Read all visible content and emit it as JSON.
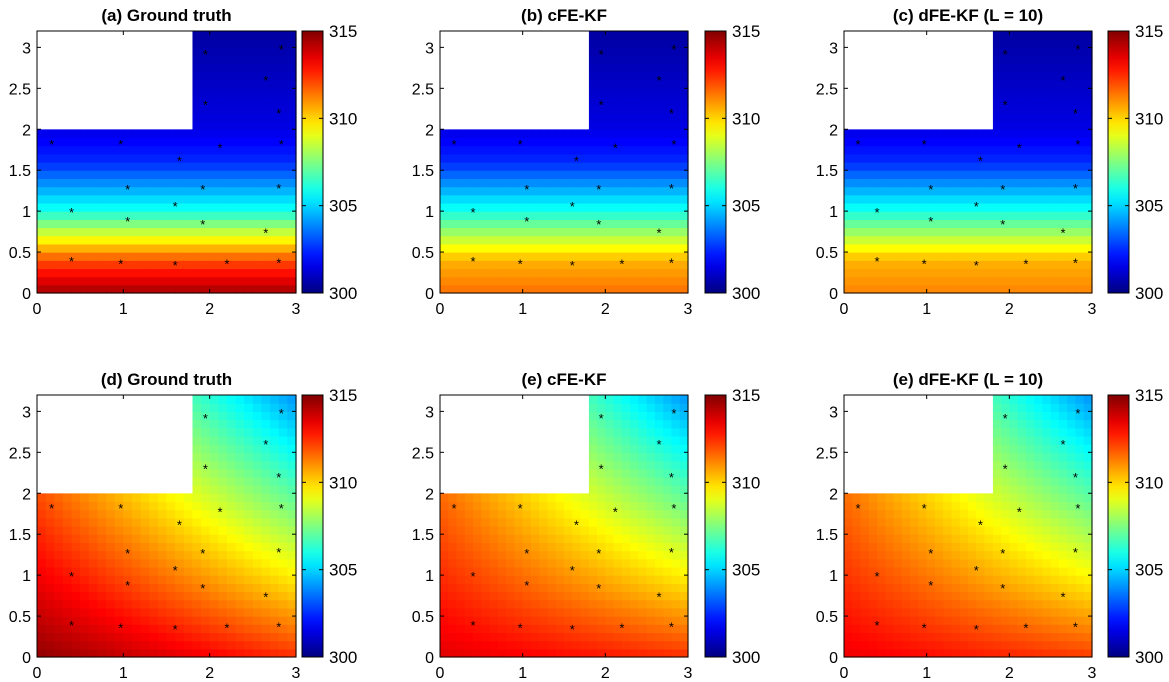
{
  "figure": {
    "colorbar_min": 300,
    "colorbar_max": 315,
    "colorbar_ticks": [
      300,
      305,
      310,
      315
    ],
    "colormap": "jet"
  },
  "chart_data": [
    {
      "type": "heatmap",
      "title": "(a) Ground truth",
      "xlim": [
        0,
        3
      ],
      "ylim": [
        0,
        3.2
      ],
      "xticks": [
        0,
        1,
        2,
        3
      ],
      "yticks": [
        0,
        0.5,
        1,
        1.5,
        2,
        2.5,
        3
      ],
      "ytick_labels": [
        "0",
        "0.5",
        "1",
        "1.5",
        "2",
        "2.5",
        "3"
      ],
      "colorbar": {
        "min": 300,
        "max": 315,
        "ticks": [
          300,
          305,
          310,
          315
        ]
      },
      "masked_region": {
        "x": [
          0,
          1.8
        ],
        "y": [
          2,
          3.2
        ]
      },
      "field": {
        "pattern": "vertical",
        "values_by_y": [
          [
            0,
            314.5
          ],
          [
            0.4,
            312
          ],
          [
            1.0,
            306
          ],
          [
            1.6,
            302.5
          ],
          [
            2.0,
            301.5
          ],
          [
            3.2,
            300.5
          ]
        ]
      },
      "sensors": [
        [
          1.95,
          2.92
        ],
        [
          2.83,
          2.98
        ],
        [
          2.65,
          2.6
        ],
        [
          1.95,
          2.3
        ],
        [
          2.8,
          2.2
        ],
        [
          0.17,
          1.82
        ],
        [
          0.97,
          1.82
        ],
        [
          1.65,
          1.62
        ],
        [
          2.12,
          1.78
        ],
        [
          2.83,
          1.82
        ],
        [
          1.05,
          1.27
        ],
        [
          1.92,
          1.27
        ],
        [
          2.8,
          1.28
        ],
        [
          0.4,
          0.99
        ],
        [
          1.05,
          0.88
        ],
        [
          1.6,
          1.06
        ],
        [
          1.92,
          0.84
        ],
        [
          2.65,
          0.74
        ],
        [
          0.4,
          0.39
        ],
        [
          0.97,
          0.36
        ],
        [
          1.6,
          0.34
        ],
        [
          2.2,
          0.36
        ],
        [
          2.8,
          0.37
        ]
      ]
    },
    {
      "type": "heatmap",
      "title": "(b) cFE-KF",
      "xlim": [
        0,
        3
      ],
      "ylim": [
        0,
        3.2
      ],
      "xticks": [
        0,
        1,
        2,
        3
      ],
      "yticks": [
        0,
        0.5,
        1,
        1.5,
        2,
        2.5,
        3
      ],
      "ytick_labels": [
        "0",
        "0.5",
        "1",
        "1.5",
        "2",
        "2.5",
        "3"
      ],
      "colorbar": {
        "min": 300,
        "max": 315,
        "ticks": [
          300,
          305,
          310,
          315
        ]
      },
      "masked_region": {
        "x": [
          0,
          1.8
        ],
        "y": [
          2,
          3.2
        ]
      },
      "field": {
        "pattern": "vertical",
        "values_by_y": [
          [
            0,
            311.5
          ],
          [
            0.4,
            310.5
          ],
          [
            1.0,
            306
          ],
          [
            1.6,
            302.5
          ],
          [
            2.0,
            301.5
          ],
          [
            3.2,
            300.5
          ]
        ]
      },
      "sensors": [
        [
          1.95,
          2.92
        ],
        [
          2.83,
          2.98
        ],
        [
          2.65,
          2.6
        ],
        [
          1.95,
          2.3
        ],
        [
          2.8,
          2.2
        ],
        [
          0.17,
          1.82
        ],
        [
          0.97,
          1.82
        ],
        [
          1.65,
          1.62
        ],
        [
          2.12,
          1.78
        ],
        [
          2.83,
          1.82
        ],
        [
          1.05,
          1.27
        ],
        [
          1.92,
          1.27
        ],
        [
          2.8,
          1.28
        ],
        [
          0.4,
          0.99
        ],
        [
          1.05,
          0.88
        ],
        [
          1.6,
          1.06
        ],
        [
          1.92,
          0.84
        ],
        [
          2.65,
          0.74
        ],
        [
          0.4,
          0.39
        ],
        [
          0.97,
          0.36
        ],
        [
          1.6,
          0.34
        ],
        [
          2.2,
          0.36
        ],
        [
          2.8,
          0.37
        ]
      ]
    },
    {
      "type": "heatmap",
      "title": "(c) dFE-KF (L = 10)",
      "xlim": [
        0,
        3
      ],
      "ylim": [
        0,
        3.2
      ],
      "xticks": [
        0,
        1,
        2,
        3
      ],
      "yticks": [
        0,
        0.5,
        1,
        1.5,
        2,
        2.5,
        3
      ],
      "ytick_labels": [
        "0",
        "0.5",
        "1",
        "1.5",
        "2",
        "2.5",
        "3"
      ],
      "colorbar": {
        "min": 300,
        "max": 315,
        "ticks": [
          300,
          305,
          310,
          315
        ]
      },
      "masked_region": {
        "x": [
          0,
          1.8
        ],
        "y": [
          2,
          3.2
        ]
      },
      "field": {
        "pattern": "vertical",
        "values_by_y": [
          [
            0,
            311.2
          ],
          [
            0.4,
            310.5
          ],
          [
            1.0,
            306
          ],
          [
            1.6,
            302.5
          ],
          [
            2.0,
            301.5
          ],
          [
            3.2,
            300.5
          ]
        ]
      },
      "sensors": [
        [
          1.95,
          2.92
        ],
        [
          2.83,
          2.98
        ],
        [
          2.65,
          2.6
        ],
        [
          1.95,
          2.3
        ],
        [
          2.8,
          2.2
        ],
        [
          0.17,
          1.82
        ],
        [
          0.97,
          1.82
        ],
        [
          1.65,
          1.62
        ],
        [
          2.12,
          1.78
        ],
        [
          2.83,
          1.82
        ],
        [
          1.05,
          1.27
        ],
        [
          1.92,
          1.27
        ],
        [
          2.8,
          1.28
        ],
        [
          0.4,
          0.99
        ],
        [
          1.05,
          0.88
        ],
        [
          1.6,
          1.06
        ],
        [
          1.92,
          0.84
        ],
        [
          2.65,
          0.74
        ],
        [
          0.4,
          0.39
        ],
        [
          0.97,
          0.36
        ],
        [
          1.6,
          0.34
        ],
        [
          2.2,
          0.36
        ],
        [
          2.8,
          0.37
        ]
      ]
    },
    {
      "type": "heatmap",
      "title": "(d) Ground truth",
      "xlim": [
        0,
        3
      ],
      "ylim": [
        0,
        3.2
      ],
      "xticks": [
        0,
        1,
        2,
        3
      ],
      "yticks": [
        0,
        0.5,
        1,
        1.5,
        2,
        2.5,
        3
      ],
      "ytick_labels": [
        "0",
        "0.5",
        "1",
        "1.5",
        "2",
        "2.5",
        "3"
      ],
      "colorbar": {
        "min": 300,
        "max": 315,
        "ticks": [
          300,
          305,
          310,
          315
        ]
      },
      "masked_region": {
        "x": [
          0,
          1.8
        ],
        "y": [
          2,
          3.2
        ]
      },
      "field": {
        "pattern": "diagonal",
        "corner_values": {
          "bottom_left": 314.8,
          "bottom_right": 312.5,
          "mid_left": 310.5,
          "top_right": 304
        }
      },
      "sensors": [
        [
          1.95,
          2.92
        ],
        [
          2.83,
          2.98
        ],
        [
          2.65,
          2.6
        ],
        [
          1.95,
          2.3
        ],
        [
          2.8,
          2.2
        ],
        [
          0.17,
          1.82
        ],
        [
          0.97,
          1.82
        ],
        [
          1.65,
          1.62
        ],
        [
          2.12,
          1.78
        ],
        [
          2.83,
          1.82
        ],
        [
          1.05,
          1.27
        ],
        [
          1.92,
          1.27
        ],
        [
          2.8,
          1.28
        ],
        [
          0.4,
          0.99
        ],
        [
          1.05,
          0.88
        ],
        [
          1.6,
          1.06
        ],
        [
          1.92,
          0.84
        ],
        [
          2.65,
          0.74
        ],
        [
          0.4,
          0.39
        ],
        [
          0.97,
          0.36
        ],
        [
          1.6,
          0.34
        ],
        [
          2.2,
          0.36
        ],
        [
          2.8,
          0.37
        ]
      ]
    },
    {
      "type": "heatmap",
      "title": "(e) cFE-KF",
      "xlim": [
        0,
        3
      ],
      "ylim": [
        0,
        3.2
      ],
      "xticks": [
        0,
        1,
        2,
        3
      ],
      "yticks": [
        0,
        0.5,
        1,
        1.5,
        2,
        2.5,
        3
      ],
      "ytick_labels": [
        "0",
        "0.5",
        "1",
        "1.5",
        "2",
        "2.5",
        "3"
      ],
      "colorbar": {
        "min": 300,
        "max": 315,
        "ticks": [
          300,
          305,
          310,
          315
        ]
      },
      "masked_region": {
        "x": [
          0,
          1.8
        ],
        "y": [
          2,
          3.2
        ]
      },
      "field": {
        "pattern": "diagonal",
        "corner_values": {
          "bottom_left": 313.6,
          "bottom_right": 312.5,
          "mid_left": 310.5,
          "top_right": 304
        }
      },
      "sensors": [
        [
          1.95,
          2.92
        ],
        [
          2.83,
          2.98
        ],
        [
          2.65,
          2.6
        ],
        [
          1.95,
          2.3
        ],
        [
          2.8,
          2.2
        ],
        [
          0.17,
          1.82
        ],
        [
          0.97,
          1.82
        ],
        [
          1.65,
          1.62
        ],
        [
          2.12,
          1.78
        ],
        [
          2.83,
          1.82
        ],
        [
          1.05,
          1.27
        ],
        [
          1.92,
          1.27
        ],
        [
          2.8,
          1.28
        ],
        [
          0.4,
          0.99
        ],
        [
          1.05,
          0.88
        ],
        [
          1.6,
          1.06
        ],
        [
          1.92,
          0.84
        ],
        [
          2.65,
          0.74
        ],
        [
          0.4,
          0.39
        ],
        [
          0.97,
          0.36
        ],
        [
          1.6,
          0.34
        ],
        [
          2.2,
          0.36
        ],
        [
          2.8,
          0.37
        ]
      ]
    },
    {
      "type": "heatmap",
      "title": "(e) dFE-KF (L = 10)",
      "xlim": [
        0,
        3
      ],
      "ylim": [
        0,
        3.2
      ],
      "xticks": [
        0,
        1,
        2,
        3
      ],
      "yticks": [
        0,
        0.5,
        1,
        1.5,
        2,
        2.5,
        3
      ],
      "ytick_labels": [
        "0",
        "0.5",
        "1",
        "1.5",
        "2",
        "2.5",
        "3"
      ],
      "colorbar": {
        "min": 300,
        "max": 315,
        "ticks": [
          300,
          305,
          310,
          315
        ]
      },
      "masked_region": {
        "x": [
          0,
          1.8
        ],
        "y": [
          2,
          3.2
        ]
      },
      "field": {
        "pattern": "diagonal",
        "corner_values": {
          "bottom_left": 313.4,
          "bottom_right": 312.3,
          "mid_left": 310.5,
          "top_right": 304
        }
      },
      "sensors": [
        [
          1.95,
          2.92
        ],
        [
          2.83,
          2.98
        ],
        [
          2.65,
          2.6
        ],
        [
          1.95,
          2.3
        ],
        [
          2.8,
          2.2
        ],
        [
          0.17,
          1.82
        ],
        [
          0.97,
          1.82
        ],
        [
          1.65,
          1.62
        ],
        [
          2.12,
          1.78
        ],
        [
          2.83,
          1.82
        ],
        [
          1.05,
          1.27
        ],
        [
          1.92,
          1.27
        ],
        [
          2.8,
          1.28
        ],
        [
          0.4,
          0.99
        ],
        [
          1.05,
          0.88
        ],
        [
          1.6,
          1.06
        ],
        [
          1.92,
          0.84
        ],
        [
          2.65,
          0.74
        ],
        [
          0.4,
          0.39
        ],
        [
          0.97,
          0.36
        ],
        [
          1.6,
          0.34
        ],
        [
          2.2,
          0.36
        ],
        [
          2.8,
          0.37
        ]
      ]
    }
  ]
}
